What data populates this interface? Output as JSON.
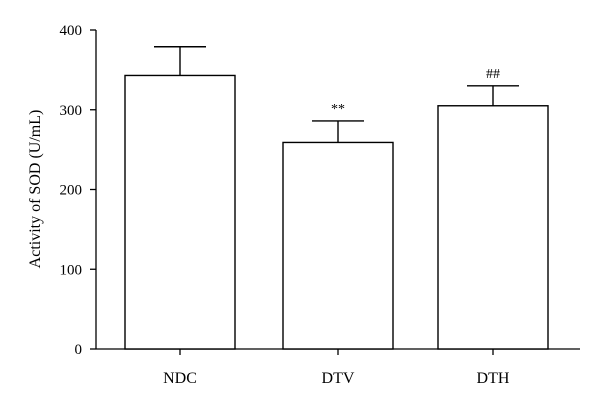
{
  "chart_data": {
    "type": "bar",
    "categories": [
      "NDC",
      "DTV",
      "DTH"
    ],
    "values": [
      343,
      259,
      305
    ],
    "error_upper": [
      379,
      286,
      330
    ],
    "annotations": [
      "",
      "**",
      "##"
    ],
    "xlabel": "",
    "ylabel": "Activity of SOD (U/mL)",
    "ylim": [
      0,
      400
    ],
    "yticks": [
      0,
      100,
      200,
      300,
      400
    ],
    "grid": false,
    "legend": "none",
    "bar_fill": "#ffffff",
    "bar_stroke": "#000000"
  }
}
